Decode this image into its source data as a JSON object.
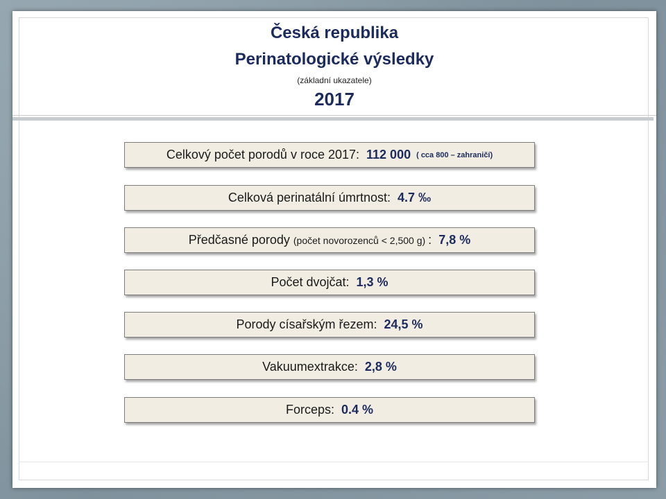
{
  "title": {
    "line1": "Česká republika",
    "line2": "Perinatologické výsledky",
    "subtitle": "(základní ukazatele)",
    "year": "2017"
  },
  "stats": [
    {
      "label": "Celkový počet porodů v roce 2017:",
      "value": "112 000",
      "note": "( cca 800 – zahraničí)"
    },
    {
      "label": "Celková perinatální úmrtnost:",
      "value": "4.7 ‰"
    },
    {
      "label": "Předčasné porody",
      "note": "(počet novorozenců < 2,500 g)",
      "separator": ":",
      "value": "7,8 %"
    },
    {
      "label": "Počet dvojčat:",
      "value": "1,3 %"
    },
    {
      "label": "Porody císařským řezem:",
      "value": "24,5 %"
    },
    {
      "label": "Vakuumextrakce:",
      "value": "2,8 %"
    },
    {
      "label": "Forceps:",
      "value": "0.4 %"
    }
  ]
}
